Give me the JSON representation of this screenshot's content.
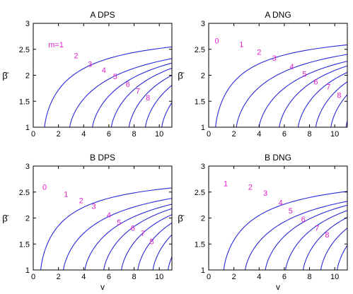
{
  "figure": {
    "xlabel": "v",
    "ylabel": "β̄"
  },
  "colors": {
    "curve": "#2a2ad8",
    "label": "#e020c8",
    "axis": "#000000"
  },
  "chart_data": [
    {
      "type": "line",
      "title": "A   DPS",
      "xlabel": "",
      "ylabel": "β̄",
      "xlim": [
        0,
        11
      ],
      "ylim": [
        1,
        3
      ],
      "xticks": [
        "0",
        "2",
        "4",
        "6",
        "8",
        "10"
      ],
      "yticks": [
        "1",
        "1.5",
        "2",
        "2.5",
        "3"
      ],
      "grid": false,
      "asymptote": 2.83,
      "series": [
        {
          "name": "m=1",
          "v_at_1": 0.9,
          "label_at": [
            1.8,
            2.59
          ]
        },
        {
          "name": "2",
          "v_at_1": 2.9,
          "label_at": [
            3.4,
            2.38
          ]
        },
        {
          "name": "3",
          "v_at_1": 4.7,
          "label_at": [
            4.5,
            2.22
          ]
        },
        {
          "name": "4",
          "v_at_1": 6.2,
          "label_at": [
            5.6,
            2.1
          ]
        },
        {
          "name": "5",
          "v_at_1": 7.6,
          "label_at": [
            6.5,
            1.98
          ]
        },
        {
          "name": "6",
          "v_at_1": 8.9,
          "label_at": [
            7.5,
            1.83
          ]
        },
        {
          "name": "7",
          "v_at_1": 10.2,
          "label_at": [
            8.3,
            1.7
          ]
        },
        {
          "name": "8",
          "v_at_1": 11.3,
          "label_at": [
            9.1,
            1.57
          ]
        }
      ]
    },
    {
      "type": "line",
      "title": "A   DNG",
      "xlabel": "",
      "ylabel": "β̄",
      "xlim": [
        0,
        11
      ],
      "ylim": [
        1,
        3
      ],
      "xticks": [
        "0",
        "2",
        "4",
        "6",
        "8",
        "10"
      ],
      "yticks": [
        "1",
        "1.5",
        "2",
        "2.5",
        "3"
      ],
      "grid": false,
      "asymptote": 2.83,
      "series": [
        {
          "name": "0",
          "v_at_1": 0.55,
          "label_at": [
            0.65,
            2.67
          ]
        },
        {
          "name": "1",
          "v_at_1": 2.2,
          "label_at": [
            2.6,
            2.6
          ]
        },
        {
          "name": "2",
          "v_at_1": 4.0,
          "label_at": [
            4.0,
            2.45
          ]
        },
        {
          "name": "3",
          "v_at_1": 5.6,
          "label_at": [
            5.2,
            2.33
          ]
        },
        {
          "name": "4",
          "v_at_1": 7.1,
          "label_at": [
            6.6,
            2.17
          ]
        },
        {
          "name": "5",
          "v_at_1": 8.5,
          "label_at": [
            7.6,
            2.03
          ]
        },
        {
          "name": "6",
          "v_at_1": 9.7,
          "label_at": [
            8.5,
            1.88
          ]
        },
        {
          "name": "7",
          "v_at_1": 10.9,
          "label_at": [
            9.5,
            1.78
          ]
        },
        {
          "name": "8",
          "v_at_1": 12.1,
          "label_at": [
            10.35,
            1.62
          ]
        }
      ]
    },
    {
      "type": "line",
      "title": "B   DPS",
      "xlabel": "v",
      "ylabel": "β̄",
      "xlim": [
        0,
        11
      ],
      "ylim": [
        1,
        3
      ],
      "xticks": [
        "0",
        "2",
        "4",
        "6",
        "8",
        "10"
      ],
      "yticks": [
        "1",
        "1.5",
        "2",
        "2.5",
        "3"
      ],
      "grid": false,
      "asymptote": 2.83,
      "series": [
        {
          "name": "0",
          "v_at_1": 0.6,
          "label_at": [
            0.9,
            2.6
          ]
        },
        {
          "name": "1",
          "v_at_1": 2.4,
          "label_at": [
            2.6,
            2.46
          ]
        },
        {
          "name": "2",
          "v_at_1": 4.1,
          "label_at": [
            3.8,
            2.34
          ]
        },
        {
          "name": "3",
          "v_at_1": 5.6,
          "label_at": [
            4.8,
            2.23
          ]
        },
        {
          "name": "4",
          "v_at_1": 7.0,
          "label_at": [
            6.0,
            2.06
          ]
        },
        {
          "name": "5",
          "v_at_1": 8.3,
          "label_at": [
            6.8,
            1.92
          ]
        },
        {
          "name": "6",
          "v_at_1": 9.5,
          "label_at": [
            7.9,
            1.81
          ]
        },
        {
          "name": "7",
          "v_at_1": 10.7,
          "label_at": [
            8.7,
            1.71
          ]
        },
        {
          "name": "8",
          "v_at_1": 11.9,
          "label_at": [
            9.4,
            1.55
          ]
        }
      ]
    },
    {
      "type": "line",
      "title": "B   DNG",
      "xlabel": "v",
      "ylabel": "β̄",
      "xlim": [
        0,
        11
      ],
      "ylim": [
        1,
        3
      ],
      "xticks": [
        "0",
        "2",
        "4",
        "6",
        "8",
        "10"
      ],
      "yticks": [
        "1",
        "1.5",
        "2",
        "2.5",
        "3"
      ],
      "grid": false,
      "asymptote": 2.83,
      "series": [
        {
          "name": "1",
          "v_at_1": 1.2,
          "label_at": [
            1.35,
            2.67
          ]
        },
        {
          "name": "2",
          "v_at_1": 2.9,
          "label_at": [
            3.3,
            2.6
          ]
        },
        {
          "name": "3",
          "v_at_1": 4.5,
          "label_at": [
            4.5,
            2.48
          ]
        },
        {
          "name": "4",
          "v_at_1": 6.1,
          "label_at": [
            5.7,
            2.3
          ]
        },
        {
          "name": "5",
          "v_at_1": 7.5,
          "label_at": [
            6.5,
            2.14
          ]
        },
        {
          "name": "6",
          "v_at_1": 8.9,
          "label_at": [
            7.5,
            1.98
          ]
        },
        {
          "name": "7",
          "v_at_1": 10.2,
          "label_at": [
            8.6,
            1.81
          ]
        },
        {
          "name": "8",
          "v_at_1": 11.5,
          "label_at": [
            9.4,
            1.68
          ]
        }
      ]
    }
  ]
}
